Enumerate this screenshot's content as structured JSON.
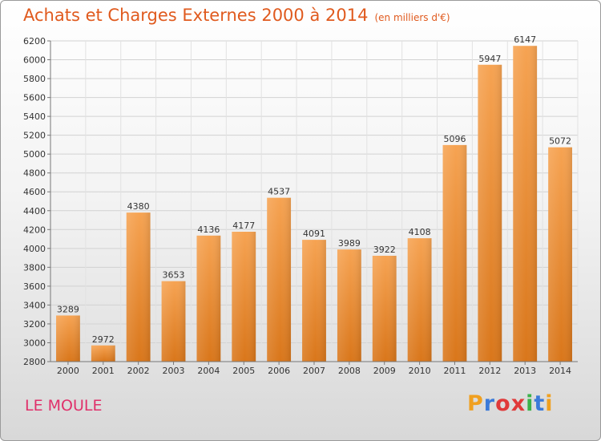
{
  "title": "Achats et Charges Externes 2000 à 2014",
  "unit": "(en milliers d'€)",
  "place": "LE MOULE",
  "brand": {
    "letters": [
      "P",
      "r",
      "o",
      "x",
      "i",
      "t",
      "i"
    ],
    "colors": [
      "#f0a020",
      "#3b7ad9",
      "#e03a3a",
      "#e03a3a",
      "#3bb24a",
      "#3b7ad9",
      "#f0a020"
    ]
  },
  "colors": {
    "title": "#e05a1e",
    "bar_top": "#f6a352",
    "bar_bottom": "#d9761a",
    "place": "#e0306a"
  },
  "chart_data": {
    "type": "bar",
    "categories": [
      "2000",
      "2001",
      "2002",
      "2003",
      "2004",
      "2005",
      "2006",
      "2007",
      "2008",
      "2009",
      "2010",
      "2011",
      "2012",
      "2013",
      "2014"
    ],
    "values": [
      3289,
      2972,
      4380,
      3653,
      4136,
      4177,
      4537,
      4091,
      3989,
      3922,
      4108,
      5096,
      5947,
      6147,
      5072
    ],
    "ylim": [
      2800,
      6200
    ],
    "yticks": [
      2800,
      3000,
      3200,
      3400,
      3600,
      3800,
      4000,
      4200,
      4400,
      4600,
      4800,
      5000,
      5200,
      5400,
      5600,
      5800,
      6000,
      6200
    ],
    "grid": true,
    "xlabel": "",
    "ylabel": ""
  }
}
